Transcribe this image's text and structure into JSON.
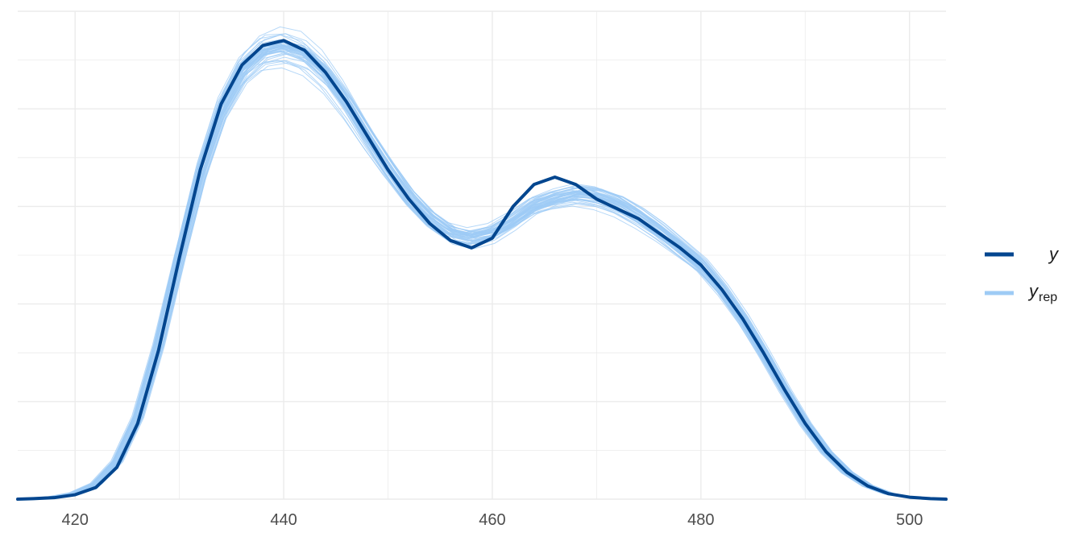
{
  "chart_data": {
    "type": "line",
    "title": "",
    "xlabel": "",
    "ylabel": "",
    "xlim": [
      414.5,
      503.5
    ],
    "ylim": [
      0,
      1
    ],
    "x_ticks": [
      420,
      440,
      460,
      480,
      500
    ],
    "x_tick_labels": [
      "420",
      "440",
      "460",
      "480",
      "500"
    ],
    "grid": true,
    "legend_position": "right",
    "legend": {
      "y_label": "y",
      "yrep_label": "y",
      "yrep_subscript": "rep"
    },
    "colors": {
      "y": "#03468f",
      "yrep": "#9ecbf5",
      "grid": "#ebebeb"
    },
    "series": [
      {
        "name": "y",
        "x": [
          414.5,
          416,
          418,
          420,
          422,
          424,
          426,
          428,
          430,
          432,
          434,
          436,
          438,
          440,
          442,
          444,
          446,
          448,
          450,
          452,
          454,
          456,
          458,
          460,
          462,
          464,
          466,
          468,
          470,
          472,
          474,
          476,
          478,
          480,
          482,
          484,
          486,
          488,
          490,
          492,
          494,
          496,
          498,
          500,
          502,
          503.5
        ],
        "y": [
          0.0,
          0.001,
          0.003,
          0.009,
          0.024,
          0.065,
          0.155,
          0.305,
          0.495,
          0.675,
          0.81,
          0.89,
          0.93,
          0.94,
          0.92,
          0.875,
          0.815,
          0.745,
          0.675,
          0.615,
          0.565,
          0.53,
          0.515,
          0.535,
          0.6,
          0.645,
          0.66,
          0.645,
          0.615,
          0.595,
          0.575,
          0.545,
          0.515,
          0.48,
          0.43,
          0.37,
          0.3,
          0.225,
          0.155,
          0.097,
          0.055,
          0.027,
          0.011,
          0.004,
          0.001,
          0.0
        ]
      },
      {
        "name": "yrep",
        "x": [
          414.5,
          416,
          418,
          420,
          422,
          424,
          426,
          428,
          430,
          432,
          434,
          436,
          438,
          440,
          442,
          444,
          446,
          448,
          450,
          452,
          454,
          456,
          458,
          460,
          462,
          464,
          466,
          468,
          470,
          472,
          474,
          476,
          478,
          480,
          482,
          484,
          486,
          488,
          490,
          492,
          494,
          496,
          498,
          500,
          502,
          503.5
        ],
        "y": [
          0.0,
          0.002,
          0.005,
          0.013,
          0.032,
          0.078,
          0.17,
          0.32,
          0.5,
          0.67,
          0.8,
          0.88,
          0.92,
          0.93,
          0.915,
          0.875,
          0.815,
          0.745,
          0.68,
          0.62,
          0.575,
          0.545,
          0.535,
          0.545,
          0.57,
          0.6,
          0.615,
          0.625,
          0.62,
          0.605,
          0.58,
          0.55,
          0.515,
          0.48,
          0.43,
          0.37,
          0.3,
          0.225,
          0.155,
          0.097,
          0.055,
          0.027,
          0.011,
          0.004,
          0.001,
          0.0
        ]
      }
    ]
  }
}
